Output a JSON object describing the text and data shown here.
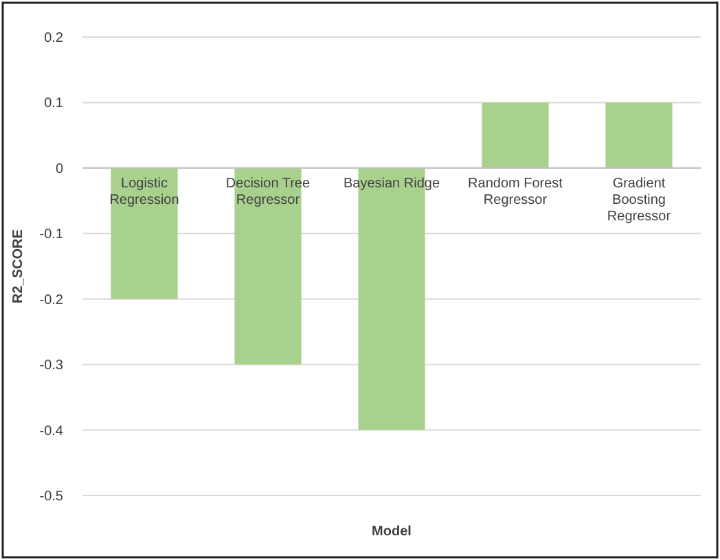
{
  "chart_data": {
    "type": "bar",
    "xlabel": "Model",
    "ylabel": "R2_SCORE",
    "categories": [
      "Logistic Regression",
      "Decision Tree Regressor",
      "Bayesian Ridge",
      "Random Forest Regressor",
      "Gradient Boosting Regressor"
    ],
    "values": [
      -0.2,
      -0.3,
      -0.4,
      0.1,
      0.1
    ],
    "color": "#a9d18e",
    "ylim": [
      -0.5,
      0.2
    ],
    "yticks": [
      -0.5,
      -0.4,
      -0.3,
      -0.2,
      -0.1,
      0,
      0.1,
      0.2
    ],
    "grid": "y"
  }
}
